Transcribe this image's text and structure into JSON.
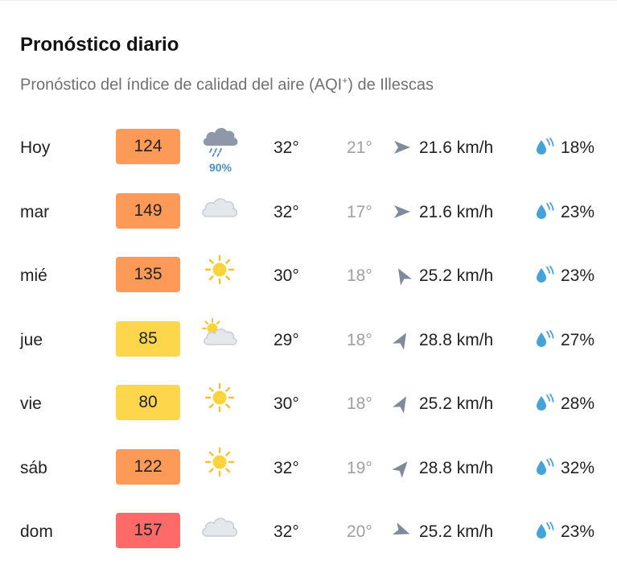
{
  "header": {
    "title": "Pronóstico diario",
    "subtitle_pre": "Pronóstico del índice de calidad del aire (AQI",
    "subtitle_sup": "+",
    "subtitle_post": ") de Illescas"
  },
  "colors": {
    "aqi_orange": "#fd9a57",
    "aqi_yellow": "#fdd64b",
    "aqi_red": "#fe6a69",
    "arrow": "#7f8a9c",
    "drop": "#46a3d9"
  },
  "days": [
    {
      "day": "Hoy",
      "aqi": "124",
      "aqi_level": "orange",
      "weather": "rain-cloud-icon",
      "rain": "90%",
      "tmax": "32°",
      "tmin": "21°",
      "wind_dir_deg": 0,
      "wind": "21.6 km/h",
      "humidity": "18%"
    },
    {
      "day": "mar",
      "aqi": "149",
      "aqi_level": "orange",
      "weather": "cloud-icon",
      "rain": "",
      "tmax": "32°",
      "tmin": "17°",
      "wind_dir_deg": 0,
      "wind": "21.6 km/h",
      "humidity": "23%"
    },
    {
      "day": "mié",
      "aqi": "135",
      "aqi_level": "orange",
      "weather": "sun-icon",
      "rain": "",
      "tmax": "30°",
      "tmin": "18°",
      "wind_dir_deg": -120,
      "wind": "25.2 km/h",
      "humidity": "23%"
    },
    {
      "day": "jue",
      "aqi": "85",
      "aqi_level": "yellow",
      "weather": "partly-cloudy-icon",
      "rain": "",
      "tmax": "29°",
      "tmin": "18°",
      "wind_dir_deg": -60,
      "wind": "28.8 km/h",
      "humidity": "27%"
    },
    {
      "day": "vie",
      "aqi": "80",
      "aqi_level": "yellow",
      "weather": "sun-icon",
      "rain": "",
      "tmax": "30°",
      "tmin": "18°",
      "wind_dir_deg": -60,
      "wind": "25.2 km/h",
      "humidity": "28%"
    },
    {
      "day": "sáb",
      "aqi": "122",
      "aqi_level": "orange",
      "weather": "sun-icon",
      "rain": "",
      "tmax": "32°",
      "tmin": "19°",
      "wind_dir_deg": -50,
      "wind": "28.8 km/h",
      "humidity": "32%"
    },
    {
      "day": "dom",
      "aqi": "157",
      "aqi_level": "red",
      "weather": "cloud-icon",
      "rain": "",
      "tmax": "32°",
      "tmin": "20°",
      "wind_dir_deg": 20,
      "wind": "25.2 km/h",
      "humidity": "23%"
    }
  ]
}
